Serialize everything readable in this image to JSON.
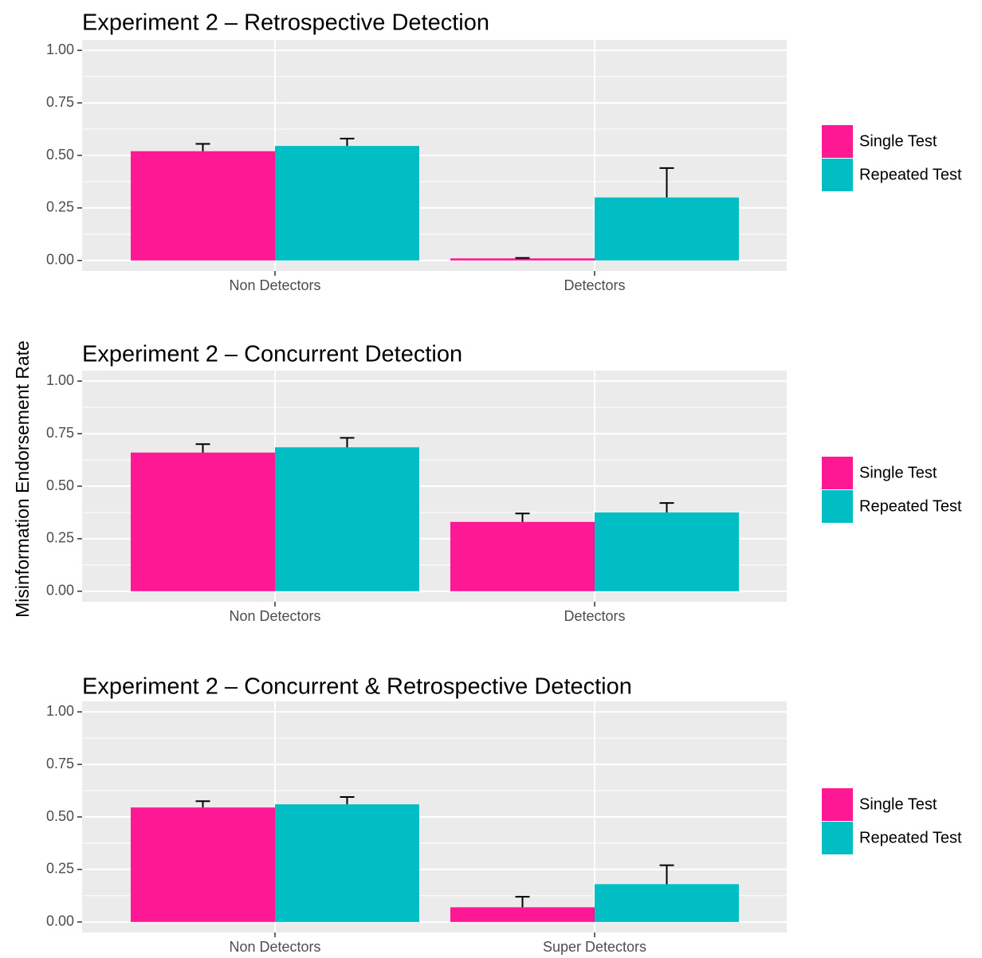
{
  "figure": {
    "ylabel": "Misinformation Endorsement Rate",
    "colors": {
      "single": "#ff1893",
      "repeated": "#00bec4",
      "panel_bg": "#ebebeb",
      "grid": "#ffffff",
      "tick_text": "#4d4d4d",
      "error_bar": "#000000"
    }
  },
  "chart_data": [
    {
      "type": "bar",
      "title": "Experiment 2 – Retrospective Detection",
      "xlabel": "",
      "ylabel": "Misinformation Endorsement Rate",
      "ylim": [
        0,
        1
      ],
      "yticks": [
        "0.00",
        "0.25",
        "0.50",
        "0.75",
        "1.00"
      ],
      "categories": [
        "Non Detectors",
        "Detectors"
      ],
      "series": [
        {
          "name": "Single Test",
          "color": "#ff1893",
          "values": [
            0.52,
            0.01
          ],
          "error_upper": [
            0.555,
            0.012
          ]
        },
        {
          "name": "Repeated Test",
          "color": "#00bec4",
          "values": [
            0.545,
            0.3
          ],
          "error_upper": [
            0.58,
            0.44
          ]
        }
      ],
      "grid": true,
      "legend": "right"
    },
    {
      "type": "bar",
      "title": "Experiment 2 – Concurrent Detection",
      "xlabel": "",
      "ylabel": "Misinformation Endorsement Rate",
      "ylim": [
        0,
        1
      ],
      "yticks": [
        "0.00",
        "0.25",
        "0.50",
        "0.75",
        "1.00"
      ],
      "categories": [
        "Non Detectors",
        "Detectors"
      ],
      "series": [
        {
          "name": "Single Test",
          "color": "#ff1893",
          "values": [
            0.66,
            0.33
          ],
          "error_upper": [
            0.7,
            0.37
          ]
        },
        {
          "name": "Repeated Test",
          "color": "#00bec4",
          "values": [
            0.685,
            0.375
          ],
          "error_upper": [
            0.73,
            0.42
          ]
        }
      ],
      "grid": true,
      "legend": "right"
    },
    {
      "type": "bar",
      "title": "Experiment 2 – Concurrent & Retrospective Detection",
      "xlabel": "",
      "ylabel": "Misinformation Endorsement Rate",
      "ylim": [
        0,
        1
      ],
      "yticks": [
        "0.00",
        "0.25",
        "0.50",
        "0.75",
        "1.00"
      ],
      "categories": [
        "Non Detectors",
        "Super Detectors"
      ],
      "series": [
        {
          "name": "Single Test",
          "color": "#ff1893",
          "values": [
            0.545,
            0.07
          ],
          "error_upper": [
            0.575,
            0.12
          ]
        },
        {
          "name": "Repeated Test",
          "color": "#00bec4",
          "values": [
            0.56,
            0.18
          ],
          "error_upper": [
            0.595,
            0.27
          ]
        }
      ],
      "grid": true,
      "legend": "right"
    }
  ]
}
